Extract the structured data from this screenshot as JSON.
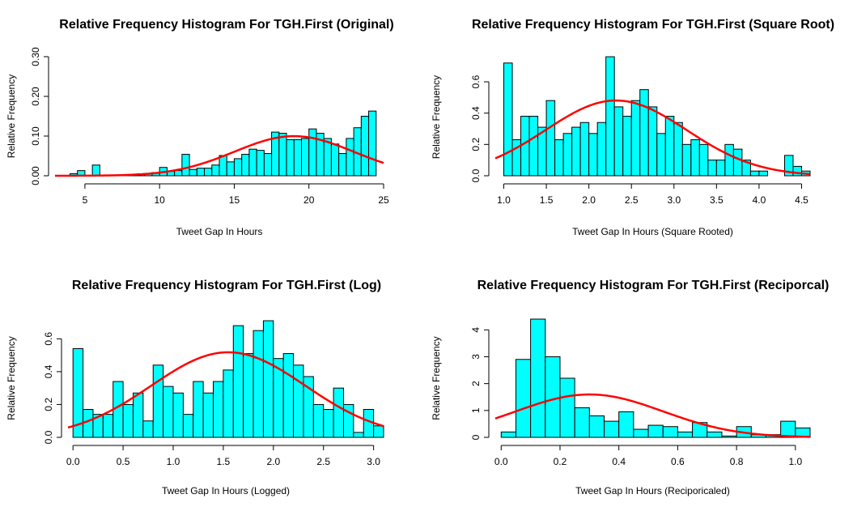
{
  "chart_data": [
    {
      "type": "bar",
      "title": "Relative Frequency Histogram For TGH.First (Original)",
      "xlabel": "Tweet Gap In Hours",
      "ylabel": "Relative Frequency",
      "xlim": [
        3,
        25
      ],
      "ylim": [
        0,
        0.3
      ],
      "xticks": [
        5,
        10,
        15,
        20,
        25
      ],
      "yticks": [
        0.0,
        0.1,
        0.2,
        0.3
      ],
      "ytick_labels": [
        "0.00",
        "0.10",
        "0.20",
        "0.30"
      ],
      "xtick_labels": [
        "5",
        "10",
        "15",
        "20",
        "25"
      ],
      "bars": {
        "edges": [
          4,
          4.5,
          5,
          5.5,
          6,
          6.5,
          7,
          7.5,
          8,
          8.5,
          9,
          9.5,
          10,
          10.5,
          11,
          11.5,
          12,
          12.5,
          13,
          13.5,
          14,
          14.5,
          15,
          15.5,
          16,
          16.5,
          17,
          17.5,
          18,
          18.5,
          19,
          19.5,
          20,
          20.5,
          21,
          21.5,
          22,
          22.5,
          23,
          23.5,
          24,
          24.5
        ],
        "values": [
          0.005,
          0.013,
          0,
          0.027,
          0,
          0,
          0,
          0.003,
          0.003,
          0.005,
          0.005,
          0.008,
          0.021,
          0.011,
          0.013,
          0.054,
          0.016,
          0.019,
          0.019,
          0.027,
          0.051,
          0.035,
          0.043,
          0.054,
          0.067,
          0.064,
          0.056,
          0.11,
          0.107,
          0.091,
          0.091,
          0.094,
          0.118,
          0.107,
          0.094,
          0.08,
          0.056,
          0.094,
          0.121,
          0.15,
          0.163
        ]
      },
      "curve": {
        "type": "normal",
        "mean": 19.0,
        "sd": 4.0,
        "scale": 1.0
      },
      "colors": {
        "bar_fill": "#00FFFF",
        "bar_edge": "#000000",
        "curve": "#FF0000"
      }
    },
    {
      "type": "bar",
      "title": "Relative Frequency Histogram For TGH.First (Square Root)",
      "xlabel": "Tweet Gap In Hours (Square Rooted)",
      "ylabel": "Relative Frequency",
      "xlim": [
        0.9,
        4.6
      ],
      "ylim": [
        0,
        0.75
      ],
      "xticks": [
        1.0,
        1.5,
        2.0,
        2.5,
        3.0,
        3.5,
        4.0,
        4.5
      ],
      "xtick_labels": [
        "1.0",
        "1.5",
        "2.0",
        "2.5",
        "3.0",
        "3.5",
        "4.0",
        "4.5"
      ],
      "yticks": [
        0.0,
        0.2,
        0.4,
        0.6
      ],
      "ytick_labels": [
        "0.0",
        "0.2",
        "0.4",
        "0.6"
      ],
      "bars": {
        "edges": [
          1.0,
          1.1,
          1.2,
          1.3,
          1.4,
          1.5,
          1.6,
          1.7,
          1.8,
          1.9,
          2.0,
          2.1,
          2.2,
          2.3,
          2.4,
          2.5,
          2.6,
          2.7,
          2.8,
          2.9,
          3.0,
          3.1,
          3.2,
          3.3,
          3.4,
          3.5,
          3.6,
          3.7,
          3.8,
          3.9,
          4.0,
          4.1,
          4.2,
          4.3,
          4.4,
          4.5,
          4.6
        ],
        "values": [
          0.72,
          0.23,
          0.38,
          0.38,
          0.31,
          0.48,
          0.23,
          0.27,
          0.31,
          0.34,
          0.27,
          0.34,
          0.76,
          0.44,
          0.38,
          0.48,
          0.55,
          0.44,
          0.27,
          0.38,
          0.34,
          0.2,
          0.23,
          0.2,
          0.1,
          0.1,
          0.2,
          0.17,
          0.1,
          0.03,
          0.03,
          0,
          0,
          0.13,
          0.06,
          0.03
        ]
      },
      "curve": {
        "type": "normal",
        "mean": 2.32,
        "sd": 0.83,
        "scale": 1.0
      },
      "colors": {
        "bar_fill": "#00FFFF",
        "bar_edge": "#000000",
        "curve": "#FF0000"
      }
    },
    {
      "type": "bar",
      "title": "Relative Frequency Histogram For TGH.First (Log)",
      "xlabel": "Tweet Gap In Hours (Logged)",
      "ylabel": "Relative Frequency",
      "xlim": [
        -0.05,
        3.1
      ],
      "ylim": [
        0,
        0.72
      ],
      "xticks": [
        0.0,
        0.5,
        1.0,
        1.5,
        2.0,
        2.5,
        3.0
      ],
      "xtick_labels": [
        "0.0",
        "0.5",
        "1.0",
        "1.5",
        "2.0",
        "2.5",
        "3.0"
      ],
      "yticks": [
        0.0,
        0.2,
        0.4,
        0.6
      ],
      "ytick_labels": [
        "0.0",
        "0.2",
        "0.4",
        "0.6"
      ],
      "bars": {
        "edges": [
          0.0,
          0.1,
          0.2,
          0.3,
          0.4,
          0.5,
          0.6,
          0.7,
          0.8,
          0.9,
          1.0,
          1.1,
          1.2,
          1.3,
          1.4,
          1.5,
          1.6,
          1.7,
          1.8,
          1.9,
          2.0,
          2.1,
          2.2,
          2.3,
          2.4,
          2.5,
          2.6,
          2.7,
          2.8,
          2.9,
          3.0,
          3.1
        ],
        "values": [
          0.54,
          0.17,
          0.14,
          0.14,
          0.34,
          0.2,
          0.27,
          0.1,
          0.44,
          0.31,
          0.27,
          0.14,
          0.34,
          0.27,
          0.34,
          0.41,
          0.68,
          0.51,
          0.65,
          0.71,
          0.48,
          0.51,
          0.44,
          0.37,
          0.2,
          0.17,
          0.3,
          0.2,
          0.03,
          0.17,
          0.07
        ]
      },
      "curve": {
        "type": "normal",
        "mean": 1.55,
        "sd": 0.77,
        "scale": 1.0
      },
      "colors": {
        "bar_fill": "#00FFFF",
        "bar_edge": "#000000",
        "curve": "#FF0000"
      }
    },
    {
      "type": "bar",
      "title": "Relative Frequency Histogram For TGH.First (Reciporcal)",
      "xlabel": "Tweet Gap In Hours (Reciporicaled)",
      "ylabel": "Relative Frequency",
      "xlim": [
        -0.02,
        1.05
      ],
      "ylim": [
        0,
        4.4
      ],
      "xticks": [
        0.0,
        0.2,
        0.4,
        0.6,
        0.8,
        1.0
      ],
      "xtick_labels": [
        "0.0",
        "0.2",
        "0.4",
        "0.6",
        "0.8",
        "1.0"
      ],
      "yticks": [
        0,
        1,
        2,
        3,
        4
      ],
      "ytick_labels": [
        "0",
        "1",
        "2",
        "3",
        "4"
      ],
      "bars": {
        "edges": [
          0.0,
          0.05,
          0.1,
          0.15,
          0.2,
          0.25,
          0.3,
          0.35,
          0.4,
          0.45,
          0.5,
          0.55,
          0.6,
          0.65,
          0.7,
          0.75,
          0.8,
          0.85,
          0.9,
          0.95,
          1.0,
          1.05
        ],
        "values": [
          0.2,
          2.9,
          4.4,
          3.0,
          2.2,
          1.1,
          0.8,
          0.6,
          0.95,
          0.3,
          0.45,
          0.4,
          0.2,
          0.55,
          0.2,
          0.05,
          0.4,
          0.1,
          0.1,
          0.6,
          0.35
        ]
      },
      "curve": {
        "type": "normal",
        "mean": 0.3,
        "sd": 0.25,
        "scale": 1.0
      },
      "colors": {
        "bar_fill": "#00FFFF",
        "bar_edge": "#000000",
        "curve": "#FF0000"
      }
    }
  ]
}
